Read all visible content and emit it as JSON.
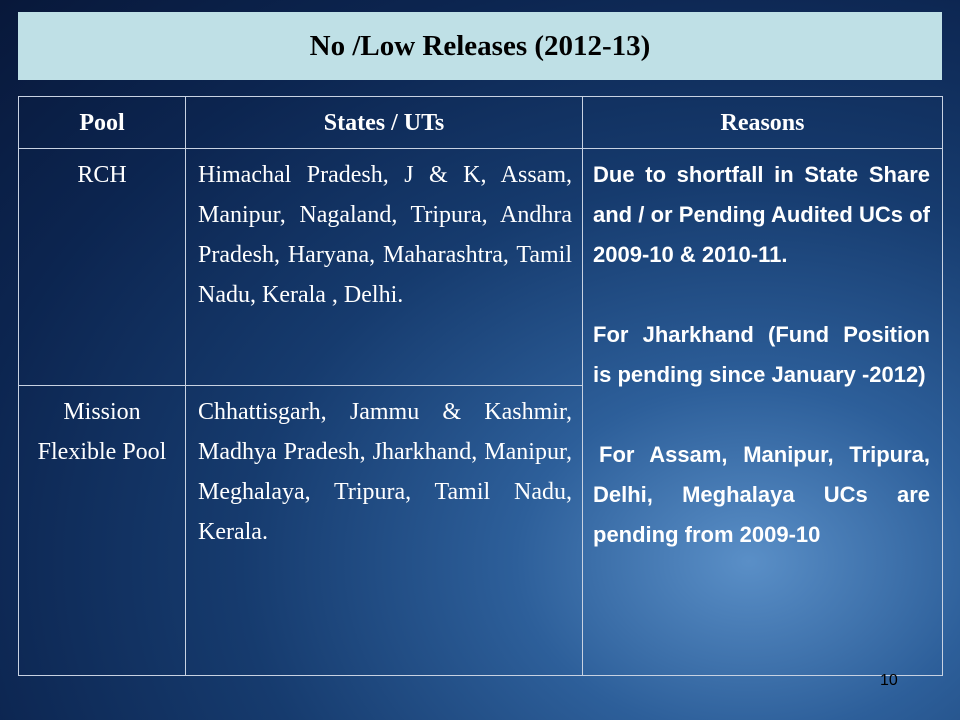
{
  "title": "No /Low Releases (2012-13)",
  "table": {
    "headers": [
      "Pool",
      "States  / UTs",
      "Reasons"
    ],
    "rows": [
      {
        "pool": "RCH",
        "states": "Himachal Pradesh, J & K, Assam, Manipur, Nagaland, Tripura, Andhra Pradesh, Haryana, Maharashtra, Tamil Nadu, Kerala , Delhi."
      },
      {
        "pool": "Mission Flexible Pool",
        "states": "Chhattisgarh, Jammu & Kashmir, Madhya Pradesh, Jharkhand, Manipur, Meghalaya, Tripura, Tamil Nadu, Kerala."
      }
    ],
    "reasons": [
      "Due to shortfall in State Share and / or Pending Audited UCs of 2009-10 & 2010-11.",
      "For Jharkhand (Fund Position is pending since January -2012)",
      "For Assam, Manipur, Tripura, Delhi, Meghalaya UCs are pending from 2009-10"
    ]
  },
  "page_number": "10"
}
